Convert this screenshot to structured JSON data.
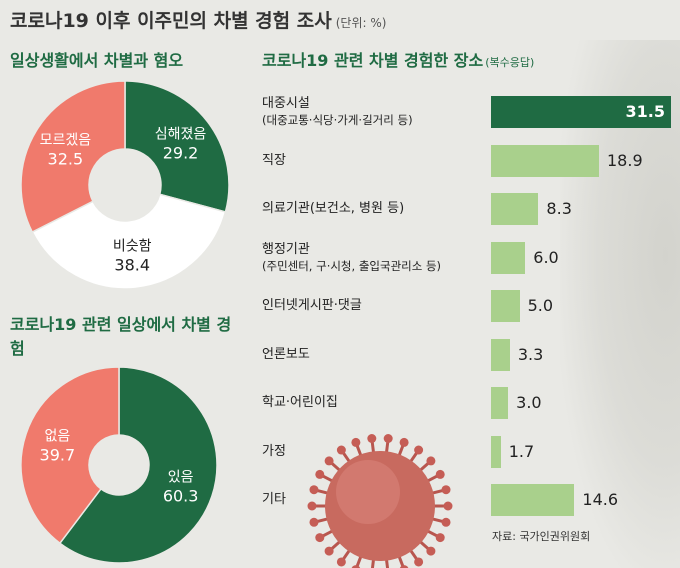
{
  "title": "코로나19 이후 이주민의 차별 경험 조사",
  "unit": "(단위: %)",
  "chart_data": [
    {
      "type": "pie",
      "title": "일상생활에서 차별과 혐오",
      "slices": [
        {
          "label": "심해졌음",
          "value": 29.2,
          "color": "#1f6b43"
        },
        {
          "label": "비슷함",
          "value": 38.4,
          "color": "#ffffff"
        },
        {
          "label": "모르겠음",
          "value": 32.5,
          "color": "#f07a6c"
        }
      ]
    },
    {
      "type": "pie",
      "title": "코로나19 관련 일상에서 차별 경험",
      "slices": [
        {
          "label": "있음",
          "value": 60.3,
          "color": "#1f6b43"
        },
        {
          "label": "없음",
          "value": 39.7,
          "color": "#f07a6c"
        }
      ]
    },
    {
      "type": "bar",
      "title": "코로나19 관련 차별 경험한 장소",
      "note": "(복수응답)",
      "categories": [
        {
          "l1": "대중시설",
          "l2": "(대중교통·식당·가게·길거리 등)"
        },
        {
          "l1": "직장",
          "l2": ""
        },
        {
          "l1": "의료기관(보건소, 병원 등)",
          "l2": ""
        },
        {
          "l1": "행정기관",
          "l2": "(주민센터, 구·시청, 출입국관리소 등)"
        },
        {
          "l1": "인터넷게시판·댓글",
          "l2": ""
        },
        {
          "l1": "언론보도",
          "l2": ""
        },
        {
          "l1": "학교·어린이집",
          "l2": ""
        },
        {
          "l1": "가정",
          "l2": ""
        },
        {
          "l1": "기타",
          "l2": ""
        }
      ],
      "values": [
        31.5,
        18.9,
        8.3,
        6.0,
        5.0,
        3.3,
        3.0,
        1.7,
        14.6
      ],
      "value_labels": [
        "31.5",
        "18.9",
        "8.3",
        "6.0",
        "5.0",
        "3.3",
        "3.0",
        "1.7",
        "14.6"
      ],
      "colors": {
        "highlight": "#1f6b43",
        "normal": "#a9d08c"
      }
    }
  ],
  "source": "자료: 국가인권위원회"
}
